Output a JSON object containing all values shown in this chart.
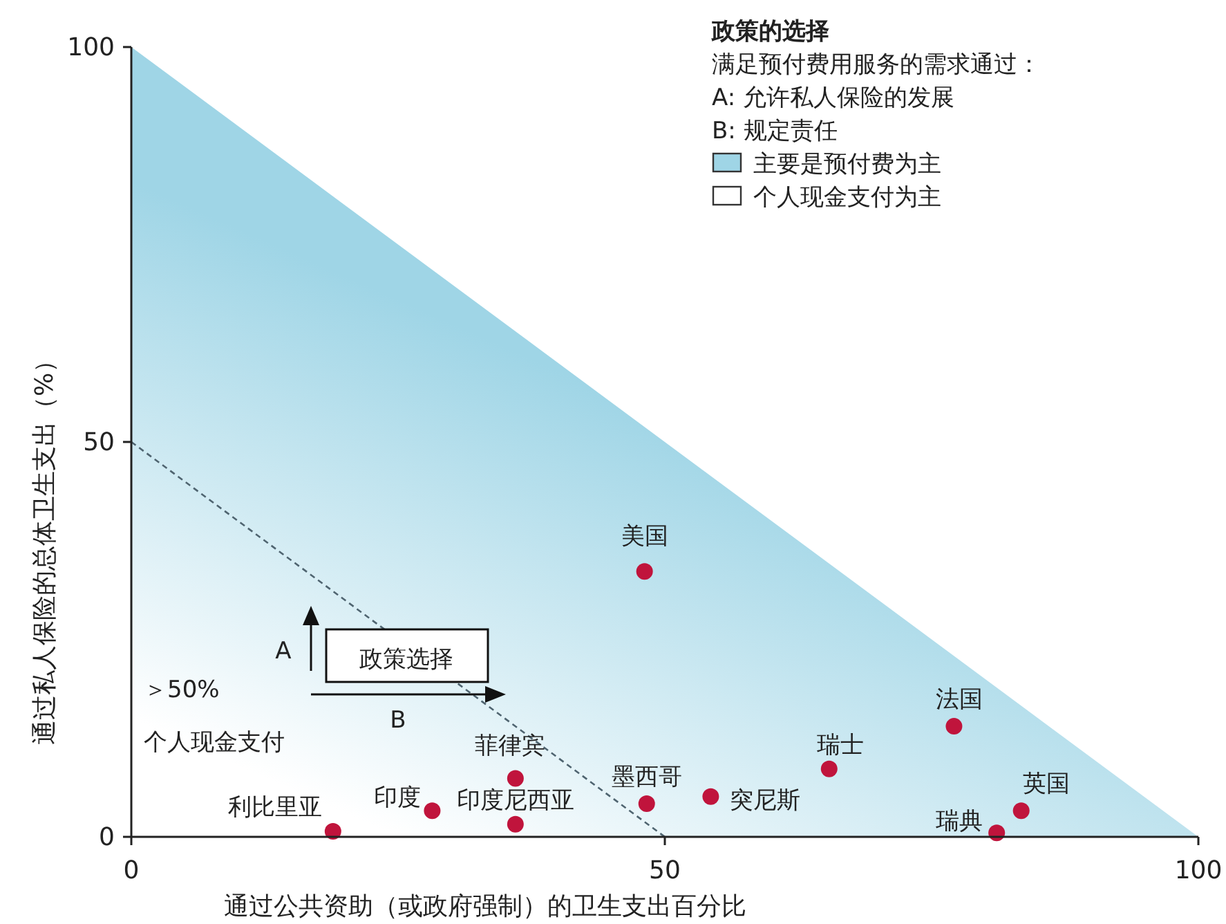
{
  "chart_data": {
    "type": "scatter",
    "legend_title": "政策的选择",
    "xlabel": "通过公共资助（或政府强制）的卫生支出百分比",
    "ylabel": "通过私人保险的总体卫生支出（%）",
    "xlim": [
      0,
      100
    ],
    "ylim": [
      0,
      100
    ],
    "xticks": [
      0,
      50,
      100
    ],
    "yticks": [
      0,
      50,
      100
    ],
    "legend": "top right",
    "marker": "circle",
    "annotations": [
      "满足预付费用服务的需求通过：",
      "A: 允许私人保险的发展",
      "B: 规定责任",
      "个人现金支付为主",
      "政策选择",
      "A",
      "B",
      "＞50%",
      "个人现金支付"
    ],
    "series": [
      {
        "name": "主要是预付费为主",
        "type": "area",
        "marker": "none",
        "color": "#9fd5e6",
        "x": [
          0,
          100
        ],
        "values": [
          100,
          0
        ]
      },
      {
        "type": "line",
        "marker": "none",
        "color": "#4f6470",
        "line_style": "dashed",
        "x": [
          0,
          50
        ],
        "values": [
          50,
          0
        ]
      },
      {
        "name": "美国",
        "color": "#c0143c",
        "x": [
          48.1
        ],
        "values": [
          33.6
        ]
      },
      {
        "name": "法国",
        "color": "#c0143c",
        "x": [
          77.1
        ],
        "values": [
          14.0
        ]
      },
      {
        "name": "瑞士",
        "color": "#c0143c",
        "x": [
          65.4
        ],
        "values": [
          8.6
        ]
      },
      {
        "name": "英国",
        "color": "#c0143c",
        "x": [
          83.4
        ],
        "values": [
          3.3
        ]
      },
      {
        "name": "瑞典",
        "color": "#c0143c",
        "x": [
          81.1
        ],
        "values": [
          0.5
        ]
      },
      {
        "name": "突尼斯",
        "color": "#c0143c",
        "x": [
          54.3
        ],
        "values": [
          5.1
        ]
      },
      {
        "name": "墨西哥",
        "color": "#c0143c",
        "x": [
          48.3
        ],
        "values": [
          4.2
        ]
      },
      {
        "name": "菲律宾",
        "color": "#c0143c",
        "x": [
          36.0
        ],
        "values": [
          7.4
        ]
      },
      {
        "name": "印度尼西亚",
        "color": "#c0143c",
        "x": [
          36.0
        ],
        "values": [
          1.6
        ]
      },
      {
        "name": "印度",
        "color": "#c0143c",
        "x": [
          28.2
        ],
        "values": [
          3.3
        ]
      },
      {
        "name": "利比里亚",
        "color": "#c0143c",
        "x": [
          18.9
        ],
        "values": [
          0.7
        ]
      }
    ]
  }
}
